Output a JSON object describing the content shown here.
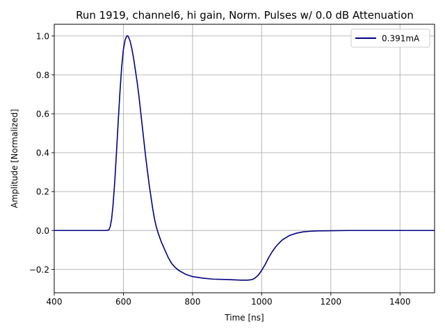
{
  "chart_data": {
    "type": "line",
    "title": "Run 1919, channel6, hi gain, Norm. Pulses w/ 0.0 dB Attenuation",
    "xlabel": "Time [ns]",
    "ylabel": "Amplitude [Normalized]",
    "xlim": [
      400,
      1500
    ],
    "ylim": [
      -0.32,
      1.06
    ],
    "xticks": [
      400,
      600,
      800,
      1000,
      1200,
      1400
    ],
    "yticks": [
      -0.2,
      0.0,
      0.2,
      0.4,
      0.6,
      0.8,
      1.0
    ],
    "xtick_labels": [
      "400",
      "600",
      "800",
      "1000",
      "1200",
      "1400"
    ],
    "ytick_labels": [
      "−0.2",
      "0.0",
      "0.2",
      "0.4",
      "0.6",
      "0.8",
      "1.0"
    ],
    "grid": true,
    "legend_position": "upper-right",
    "series": [
      {
        "name": "0.391mA",
        "color": "#000080",
        "x": [
          400,
          500,
          550,
          558,
          562,
          566,
          570,
          575,
          580,
          585,
          590,
          595,
          600,
          605,
          610,
          613,
          616,
          620,
          625,
          630,
          635,
          640,
          645,
          650,
          655,
          660,
          665,
          670,
          675,
          680,
          685,
          690,
          695,
          700,
          710,
          720,
          730,
          740,
          750,
          760,
          770,
          780,
          800,
          830,
          860,
          900,
          940,
          960,
          970,
          975,
          980,
          990,
          1000,
          1010,
          1020,
          1030,
          1040,
          1050,
          1060,
          1080,
          1100,
          1120,
          1140,
          1160,
          1200,
          1250,
          1300,
          1400,
          1500
        ],
        "y": [
          0.0,
          0.0,
          0.0,
          0.003,
          0.02,
          0.06,
          0.13,
          0.25,
          0.4,
          0.56,
          0.71,
          0.84,
          0.93,
          0.98,
          1.0,
          1.0,
          0.99,
          0.97,
          0.93,
          0.88,
          0.82,
          0.76,
          0.69,
          0.61,
          0.53,
          0.45,
          0.37,
          0.3,
          0.23,
          0.17,
          0.11,
          0.06,
          0.02,
          -0.01,
          -0.06,
          -0.1,
          -0.14,
          -0.17,
          -0.19,
          -0.205,
          -0.215,
          -0.225,
          -0.237,
          -0.245,
          -0.25,
          -0.252,
          -0.255,
          -0.255,
          -0.253,
          -0.25,
          -0.245,
          -0.23,
          -0.205,
          -0.175,
          -0.14,
          -0.11,
          -0.085,
          -0.065,
          -0.048,
          -0.026,
          -0.014,
          -0.007,
          -0.004,
          -0.002,
          -0.001,
          0.0,
          0.0,
          0.0,
          0.0
        ]
      }
    ]
  }
}
